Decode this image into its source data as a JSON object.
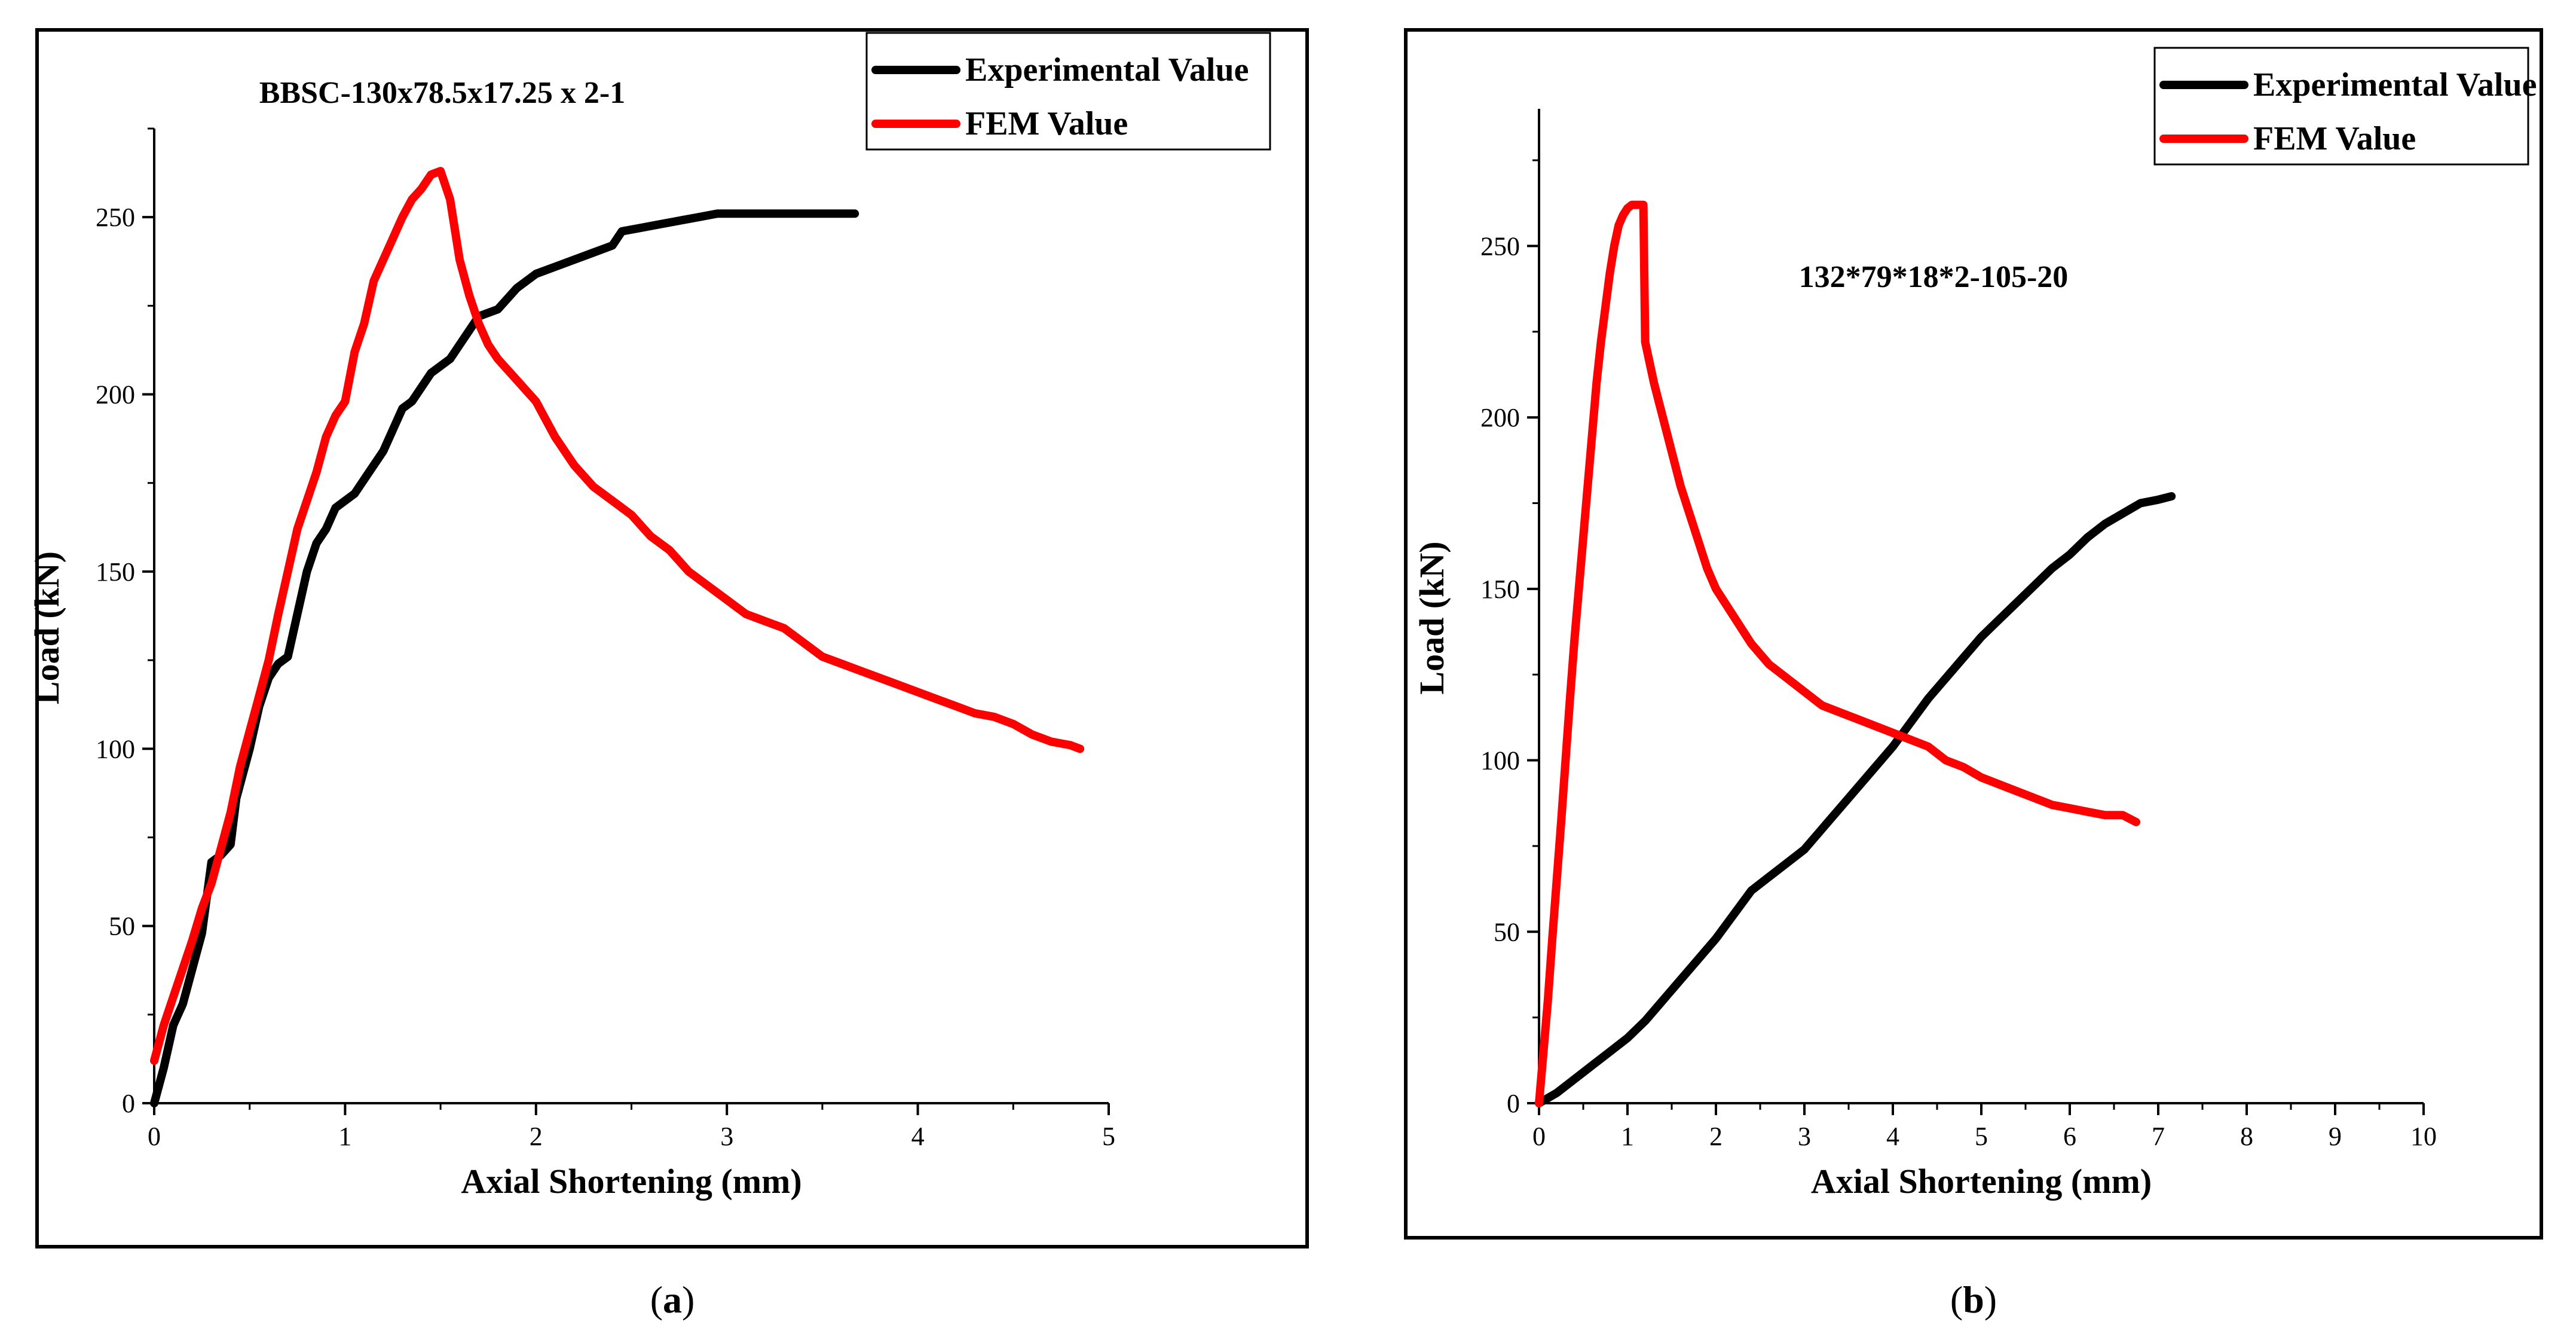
{
  "chart_data": [
    {
      "type": "line",
      "panel_label": "a",
      "title": "BBSC-130x78.5x17.25 x 2-1",
      "xlabel": "Axial Shortening (mm)",
      "ylabel": "Load (kN)",
      "xlim": [
        0,
        5
      ],
      "ylim": [
        0,
        275
      ],
      "xticks": [
        "0",
        "1",
        "2",
        "3",
        "4",
        "5"
      ],
      "yticks": [
        "0",
        "50",
        "100",
        "150",
        "200",
        "250"
      ],
      "legend_position": "top-right",
      "series": [
        {
          "name": "Experimental Value",
          "color": "#000000",
          "x": [
            0,
            0.05,
            0.1,
            0.15,
            0.2,
            0.25,
            0.3,
            0.35,
            0.4,
            0.43,
            0.45,
            0.5,
            0.55,
            0.6,
            0.65,
            0.7,
            0.75,
            0.8,
            0.85,
            0.9,
            0.95,
            1.0,
            1.05,
            1.1,
            1.15,
            1.2,
            1.25,
            1.3,
            1.35,
            1.4,
            1.45,
            1.5,
            1.55,
            1.6,
            1.7,
            1.8,
            1.9,
            2.0,
            2.1,
            2.2,
            2.3,
            2.4,
            2.45,
            2.55,
            2.65,
            2.75,
            2.85,
            2.95,
            3.05,
            3.15,
            3.25,
            3.35,
            3.45,
            3.55,
            3.67
          ],
          "y": [
            0,
            10,
            22,
            28,
            38,
            48,
            68,
            70,
            73,
            86,
            90,
            100,
            112,
            120,
            124,
            126,
            138,
            150,
            158,
            162,
            168,
            170,
            172,
            176,
            180,
            184,
            190,
            196,
            198,
            202,
            206,
            208,
            210,
            214,
            222,
            224,
            230,
            234,
            236,
            238,
            240,
            242,
            246,
            247,
            248,
            249,
            250,
            251,
            251,
            251,
            251,
            251,
            251,
            251,
            251
          ]
        },
        {
          "name": "FEM Value",
          "color": "#ff0000",
          "x": [
            0,
            0.05,
            0.1,
            0.15,
            0.2,
            0.25,
            0.3,
            0.35,
            0.4,
            0.45,
            0.5,
            0.55,
            0.6,
            0.65,
            0.7,
            0.75,
            0.8,
            0.85,
            0.9,
            0.95,
            1.0,
            1.05,
            1.1,
            1.15,
            1.2,
            1.25,
            1.3,
            1.35,
            1.4,
            1.45,
            1.5,
            1.55,
            1.6,
            1.65,
            1.7,
            1.75,
            1.8,
            1.9,
            2.0,
            2.1,
            2.2,
            2.3,
            2.4,
            2.5,
            2.6,
            2.7,
            2.8,
            2.9,
            3.0,
            3.1,
            3.2,
            3.3,
            3.4,
            3.5,
            3.6,
            3.7,
            3.8,
            3.9,
            4.0,
            4.1,
            4.2,
            4.3,
            4.4,
            4.5,
            4.6,
            4.7,
            4.8,
            4.85
          ],
          "y": [
            12,
            22,
            30,
            38,
            46,
            55,
            62,
            72,
            82,
            95,
            105,
            115,
            125,
            138,
            150,
            162,
            170,
            178,
            188,
            194,
            198,
            212,
            220,
            232,
            238,
            244,
            250,
            255,
            258,
            262,
            263,
            255,
            238,
            228,
            220,
            214,
            210,
            204,
            198,
            188,
            180,
            174,
            170,
            166,
            160,
            156,
            150,
            146,
            142,
            138,
            136,
            134,
            130,
            126,
            124,
            122,
            120,
            118,
            116,
            114,
            112,
            110,
            109,
            107,
            104,
            102,
            101,
            100
          ]
        }
      ]
    },
    {
      "type": "line",
      "panel_label": "b",
      "title": "132*79*18*2-105-20",
      "xlabel": "Axial Shortening (mm)",
      "ylabel": "Load (kN)",
      "xlim": [
        0,
        10
      ],
      "ylim": [
        0,
        290
      ],
      "xticks": [
        "0",
        "1",
        "2",
        "3",
        "4",
        "5",
        "6",
        "7",
        "8",
        "9",
        "10"
      ],
      "yticks": [
        "0",
        "50",
        "100",
        "150",
        "200",
        "250"
      ],
      "legend_position": "top-right",
      "series": [
        {
          "name": "Experimental Value",
          "color": "#000000",
          "x": [
            0,
            0.2,
            0.4,
            0.6,
            0.8,
            1.0,
            1.2,
            1.4,
            1.6,
            1.8,
            2.0,
            2.2,
            2.4,
            2.6,
            2.8,
            3.0,
            3.2,
            3.4,
            3.6,
            3.8,
            4.0,
            4.2,
            4.4,
            4.6,
            4.8,
            5.0,
            5.2,
            5.4,
            5.6,
            5.8,
            6.0,
            6.2,
            6.4,
            6.6,
            6.8,
            7.0,
            7.15
          ],
          "y": [
            0,
            3,
            7,
            11,
            15,
            19,
            24,
            30,
            36,
            42,
            48,
            55,
            62,
            66,
            70,
            74,
            80,
            86,
            92,
            98,
            104,
            111,
            118,
            124,
            130,
            136,
            141,
            146,
            151,
            156,
            160,
            165,
            169,
            172,
            175,
            176,
            177
          ]
        },
        {
          "name": "FEM Value",
          "color": "#ff0000",
          "x": [
            0,
            0.05,
            0.1,
            0.15,
            0.2,
            0.25,
            0.3,
            0.35,
            0.4,
            0.45,
            0.5,
            0.55,
            0.6,
            0.65,
            0.7,
            0.75,
            0.8,
            0.85,
            0.9,
            0.95,
            1.0,
            1.05,
            1.1,
            1.15,
            1.18,
            1.2,
            1.3,
            1.4,
            1.5,
            1.6,
            1.7,
            1.8,
            1.9,
            2.0,
            2.2,
            2.4,
            2.6,
            2.8,
            3.0,
            3.2,
            3.4,
            3.6,
            3.8,
            4.0,
            4.2,
            4.4,
            4.6,
            4.8,
            5.0,
            5.2,
            5.4,
            5.6,
            5.8,
            6.0,
            6.2,
            6.4,
            6.6,
            6.75
          ],
          "y": [
            0,
            15,
            30,
            48,
            65,
            82,
            100,
            118,
            135,
            150,
            165,
            180,
            195,
            210,
            222,
            232,
            242,
            250,
            256,
            259,
            261,
            262,
            262,
            262,
            262,
            222,
            210,
            200,
            190,
            180,
            172,
            164,
            156,
            150,
            142,
            134,
            128,
            124,
            120,
            116,
            114,
            112,
            110,
            108,
            106,
            104,
            100,
            98,
            95,
            93,
            91,
            89,
            87,
            86,
            85,
            84,
            84,
            82
          ]
        }
      ]
    }
  ]
}
